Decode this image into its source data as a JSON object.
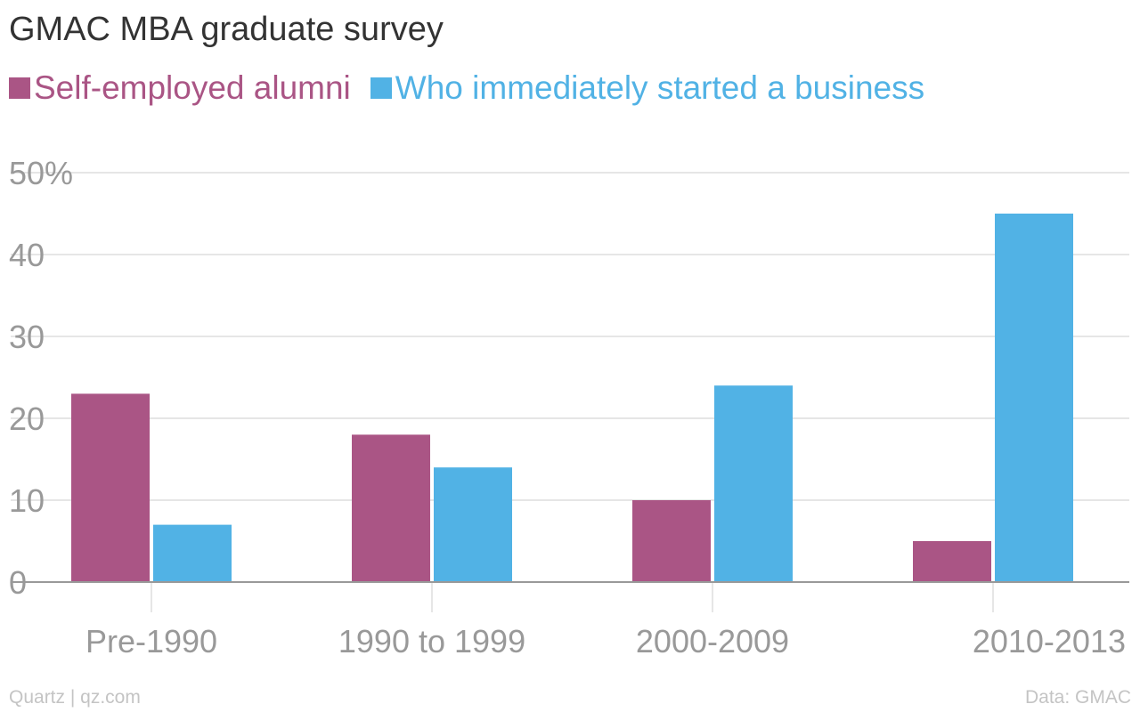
{
  "title": "GMAC MBA graduate survey",
  "source_left": "Quartz | qz.com",
  "source_right": "Data: GMAC",
  "colors": {
    "series1": "#aa5585",
    "series2": "#51b2e5",
    "grid": "#e6e6e6",
    "axis": "#999999"
  },
  "chart_data": {
    "type": "bar",
    "categories": [
      "Pre-1990",
      "1990 to 1999",
      "2000-2009",
      "2010-2013"
    ],
    "series": [
      {
        "name": "Self-employed alumni",
        "values": [
          23,
          18,
          10,
          5
        ]
      },
      {
        "name": "Who immediately started a business",
        "values": [
          7,
          14,
          24,
          45
        ]
      }
    ],
    "ylim": [
      0,
      50
    ],
    "yticks": [
      {
        "value": 0,
        "label": "0"
      },
      {
        "value": 10,
        "label": "10"
      },
      {
        "value": 20,
        "label": "20"
      },
      {
        "value": 30,
        "label": "30"
      },
      {
        "value": 40,
        "label": "40"
      },
      {
        "value": 50,
        "label": "50%"
      }
    ],
    "grid": true,
    "legend": "top-left"
  }
}
